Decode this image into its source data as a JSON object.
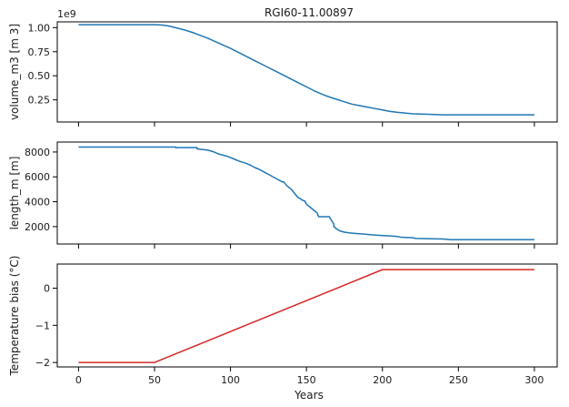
{
  "figure": {
    "title": "RGI60-11.00897",
    "xlabel": "Years"
  },
  "colors": {
    "volume": "#1f77b4",
    "length": "#1f77b4",
    "temp_bias": "#d62728",
    "axes": "#000000"
  },
  "chart_data": [
    {
      "type": "line",
      "name": "volume",
      "title": "RGI60-11.00897",
      "ylabel": "volume_m3 [m 3]",
      "offset_label": "1e9",
      "xlim": [
        -14,
        315
      ],
      "ylim": [
        0.02,
        1.06
      ],
      "xticks": [
        0,
        50,
        100,
        150,
        200,
        250,
        300
      ],
      "yticks": [
        0.25,
        0.5,
        0.75,
        1.0
      ],
      "ytick_labels": [
        "0.25",
        "0.50",
        "0.75",
        "1.00"
      ],
      "x": [
        0,
        25,
        50,
        55,
        60,
        65,
        70,
        75,
        80,
        85,
        90,
        95,
        100,
        105,
        110,
        115,
        120,
        125,
        130,
        135,
        140,
        145,
        150,
        155,
        160,
        165,
        170,
        175,
        180,
        185,
        190,
        195,
        200,
        205,
        210,
        220,
        230,
        240,
        250,
        260,
        270,
        280,
        290,
        300
      ],
      "y": [
        1.03,
        1.03,
        1.03,
        1.027,
        1.015,
        0.995,
        0.975,
        0.95,
        0.92,
        0.89,
        0.855,
        0.82,
        0.785,
        0.745,
        0.705,
        0.665,
        0.625,
        0.585,
        0.545,
        0.505,
        0.465,
        0.425,
        0.385,
        0.345,
        0.31,
        0.28,
        0.255,
        0.23,
        0.205,
        0.19,
        0.175,
        0.16,
        0.145,
        0.13,
        0.12,
        0.105,
        0.1,
        0.095,
        0.095,
        0.095,
        0.095,
        0.095,
        0.095,
        0.095
      ]
    },
    {
      "type": "line",
      "name": "length",
      "ylabel": "length_m [m]",
      "xlim": [
        -14,
        315
      ],
      "ylim": [
        600,
        8800
      ],
      "xticks": [
        0,
        50,
        100,
        150,
        200,
        250,
        300
      ],
      "yticks": [
        2000,
        4000,
        6000,
        8000
      ],
      "ytick_labels": [
        "2000",
        "4000",
        "6000",
        "8000"
      ],
      "x": [
        0,
        64,
        64,
        78,
        78,
        85,
        88,
        90,
        92,
        95,
        98,
        100,
        103,
        106,
        110,
        113,
        116,
        119,
        122,
        125,
        128,
        131,
        134,
        135,
        137,
        140,
        142,
        144,
        145,
        146,
        147,
        149,
        150,
        153,
        155,
        157,
        158,
        160,
        162,
        164,
        165,
        168,
        168,
        170,
        172,
        175,
        178,
        182,
        188,
        192,
        198,
        205,
        210,
        212,
        220,
        222,
        240,
        245,
        300
      ],
      "y": [
        8400,
        8400,
        8350,
        8350,
        8250,
        8150,
        8050,
        7950,
        7850,
        7750,
        7650,
        7550,
        7400,
        7250,
        7100,
        6950,
        6750,
        6600,
        6400,
        6200,
        6000,
        5800,
        5600,
        5600,
        5300,
        5000,
        4700,
        4400,
        4300,
        4250,
        4150,
        4050,
        3800,
        3500,
        3300,
        3100,
        2800,
        2800,
        2800,
        2800,
        2800,
        2200,
        2000,
        1800,
        1650,
        1550,
        1500,
        1450,
        1400,
        1350,
        1300,
        1250,
        1200,
        1150,
        1100,
        1050,
        1000,
        950,
        950
      ]
    },
    {
      "type": "line",
      "name": "temp_bias",
      "ylabel": "Temperature bias (°C)",
      "xlabel": "Years",
      "xlim": [
        -14,
        315
      ],
      "ylim": [
        -2.12,
        0.65
      ],
      "xticks": [
        0,
        50,
        100,
        150,
        200,
        250,
        300
      ],
      "xtick_labels": [
        "0",
        "50",
        "100",
        "150",
        "200",
        "250",
        "300"
      ],
      "yticks": [
        -2,
        -1,
        0
      ],
      "ytick_labels": [
        "−2",
        "−1",
        "0"
      ],
      "x": [
        0,
        50,
        200,
        300
      ],
      "y": [
        -2,
        -2,
        0.5,
        0.5
      ]
    }
  ]
}
